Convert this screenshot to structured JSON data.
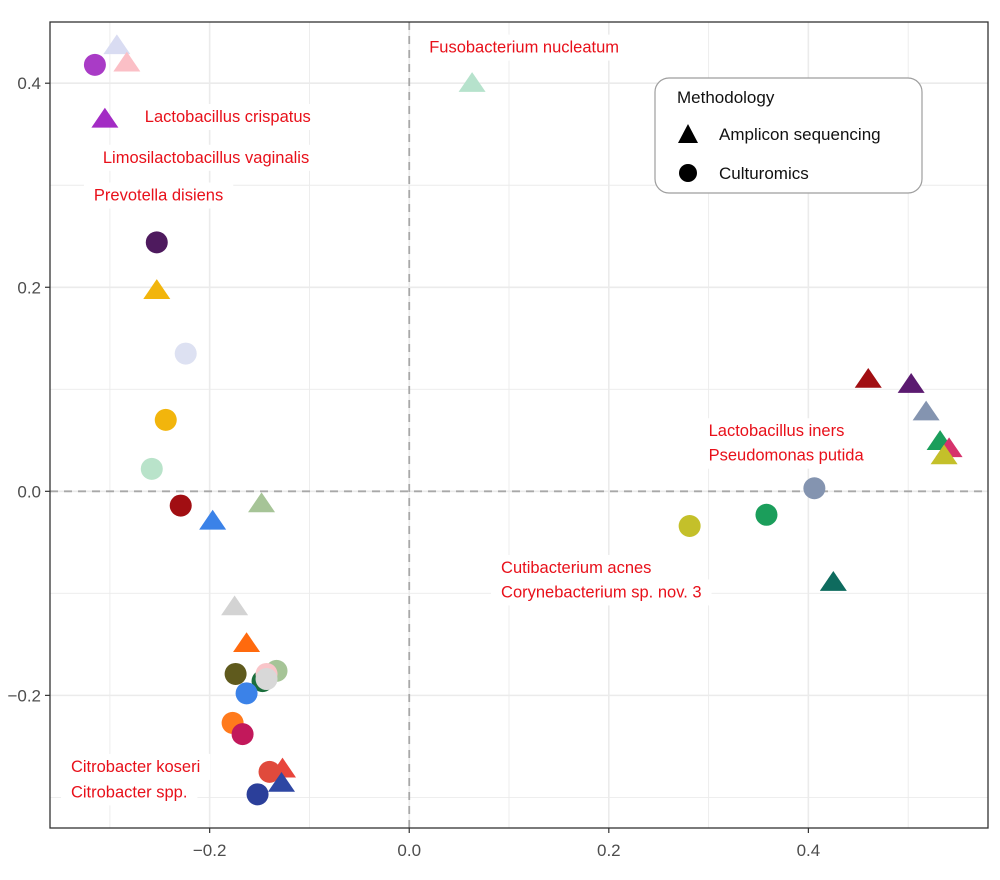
{
  "chart_data": {
    "type": "scatter",
    "title": "",
    "xlabel": "",
    "ylabel": "",
    "xlim": [
      -0.36,
      0.58
    ],
    "ylim": [
      -0.33,
      0.46
    ],
    "x_ticks": [
      -0.2,
      0.0,
      0.2,
      0.4
    ],
    "x_tick_labels": [
      "−0.2",
      "0.0",
      "0.2",
      "0.4"
    ],
    "y_ticks": [
      -0.2,
      0.0,
      0.2,
      0.4
    ],
    "y_tick_labels": [
      "−0.2",
      "0.0",
      "0.2",
      "0.4"
    ],
    "grid": true,
    "reference_lines": {
      "x": 0.0,
      "y": 0.0,
      "style": "dashed"
    },
    "legend": {
      "title": "Methodology",
      "position": "top-right",
      "items": [
        {
          "label": "Amplicon sequencing",
          "shape": "triangle"
        },
        {
          "label": "Culturomics",
          "shape": "circle"
        }
      ]
    },
    "annotations": [
      {
        "text": "Fusobacterium nucleatum",
        "x": 0.02,
        "y": 0.43
      },
      {
        "text": "Lactobacillus crispatus",
        "x": -0.265,
        "y": 0.362
      },
      {
        "text": "Limosilactobacillus vaginalis",
        "x": -0.307,
        "y": 0.322
      },
      {
        "text": "Prevotella disiens",
        "x": -0.316,
        "y": 0.285
      },
      {
        "text": "Lactobacillus iners",
        "x": 0.3,
        "y": 0.054
      },
      {
        "text": "Pseudomonas putida",
        "x": 0.3,
        "y": 0.03
      },
      {
        "text": "Cutibacterium acnes",
        "x": 0.092,
        "y": -0.08
      },
      {
        "text": "Corynebacterium sp. nov. 3",
        "x": 0.092,
        "y": -0.104
      },
      {
        "text": "Citrobacter koseri",
        "x": -0.339,
        "y": -0.275
      },
      {
        "text": "Citrobacter spp.",
        "x": -0.339,
        "y": -0.3
      }
    ],
    "points": [
      {
        "x": -0.293,
        "y": 0.438,
        "shape": "triangle",
        "color": "#d9dcf2"
      },
      {
        "x": -0.283,
        "y": 0.421,
        "shape": "triangle",
        "color": "#fbbfc6"
      },
      {
        "x": -0.315,
        "y": 0.418,
        "shape": "circle",
        "color": "#a93bc6"
      },
      {
        "x": -0.305,
        "y": 0.366,
        "shape": "triangle",
        "color": "#a32cc4"
      },
      {
        "x": 0.063,
        "y": 0.401,
        "shape": "triangle",
        "color": "#b6e2cc"
      },
      {
        "x": -0.253,
        "y": 0.244,
        "shape": "circle",
        "color": "#4e1a5e"
      },
      {
        "x": -0.253,
        "y": 0.198,
        "shape": "triangle",
        "color": "#f2b50c"
      },
      {
        "x": -0.224,
        "y": 0.135,
        "shape": "circle",
        "color": "#dde1f2"
      },
      {
        "x": -0.244,
        "y": 0.07,
        "shape": "circle",
        "color": "#f2b50c"
      },
      {
        "x": -0.258,
        "y": 0.022,
        "shape": "circle",
        "color": "#b9e3ca"
      },
      {
        "x": -0.229,
        "y": -0.014,
        "shape": "circle",
        "color": "#a10e12"
      },
      {
        "x": -0.197,
        "y": -0.028,
        "shape": "triangle",
        "color": "#3b82e8"
      },
      {
        "x": -0.148,
        "y": -0.011,
        "shape": "triangle",
        "color": "#a6c497"
      },
      {
        "x": -0.175,
        "y": -0.112,
        "shape": "triangle",
        "color": "#d3d3d3"
      },
      {
        "x": -0.163,
        "y": -0.148,
        "shape": "triangle",
        "color": "#ff6a0e"
      },
      {
        "x": -0.133,
        "y": -0.176,
        "shape": "circle",
        "color": "#a6c497"
      },
      {
        "x": -0.147,
        "y": -0.186,
        "shape": "circle",
        "color": "#1b6e3c"
      },
      {
        "x": -0.143,
        "y": -0.179,
        "shape": "circle",
        "color": "#f9c5c9"
      },
      {
        "x": -0.174,
        "y": -0.179,
        "shape": "circle",
        "color": "#5f5a1d"
      },
      {
        "x": -0.143,
        "y": -0.184,
        "shape": "circle",
        "color": "#d8d8d8"
      },
      {
        "x": -0.163,
        "y": -0.198,
        "shape": "circle",
        "color": "#3b82e8"
      },
      {
        "x": -0.177,
        "y": -0.227,
        "shape": "circle",
        "color": "#ff7a1c"
      },
      {
        "x": -0.167,
        "y": -0.238,
        "shape": "circle",
        "color": "#c2185b"
      },
      {
        "x": -0.127,
        "y": -0.271,
        "shape": "triangle",
        "color": "#e8453c"
      },
      {
        "x": -0.14,
        "y": -0.275,
        "shape": "circle",
        "color": "#e04a3c"
      },
      {
        "x": -0.128,
        "y": -0.285,
        "shape": "triangle",
        "color": "#2e47a3"
      },
      {
        "x": -0.152,
        "y": -0.297,
        "shape": "circle",
        "color": "#2b3f9a"
      },
      {
        "x": 0.46,
        "y": 0.111,
        "shape": "triangle",
        "color": "#a10e12"
      },
      {
        "x": 0.503,
        "y": 0.106,
        "shape": "triangle",
        "color": "#5b1a70"
      },
      {
        "x": 0.518,
        "y": 0.079,
        "shape": "triangle",
        "color": "#8494b0"
      },
      {
        "x": 0.532,
        "y": 0.05,
        "shape": "triangle",
        "color": "#1b9e5b"
      },
      {
        "x": 0.541,
        "y": 0.043,
        "shape": "triangle",
        "color": "#d6336c"
      },
      {
        "x": 0.536,
        "y": 0.036,
        "shape": "triangle",
        "color": "#c4c02a"
      },
      {
        "x": 0.406,
        "y": 0.003,
        "shape": "circle",
        "color": "#8494b0"
      },
      {
        "x": 0.358,
        "y": -0.023,
        "shape": "circle",
        "color": "#1b9e5b"
      },
      {
        "x": 0.281,
        "y": -0.034,
        "shape": "circle",
        "color": "#c4c02a"
      },
      {
        "x": 0.425,
        "y": -0.088,
        "shape": "triangle",
        "color": "#0e6b5e"
      }
    ]
  }
}
